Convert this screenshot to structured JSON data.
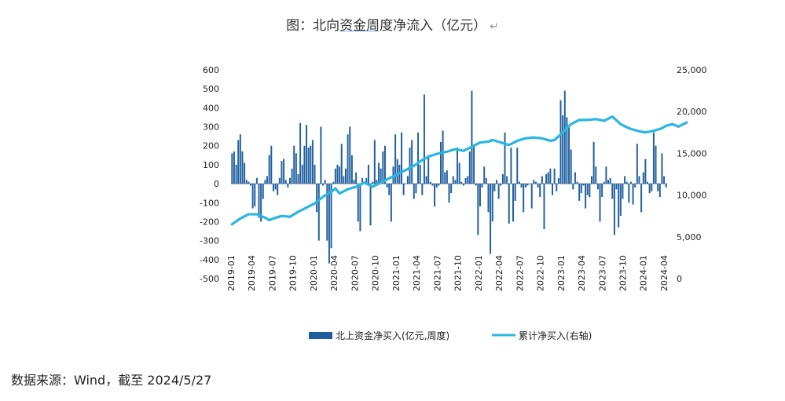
{
  "figure": {
    "title_prefix": "图：北向",
    "title_underlined": "资金周",
    "title_suffix": "度净流入（亿元）",
    "title_mark": "↵"
  },
  "source_note": "数据来源：Wind，截至 2024/5/27",
  "chart_data": {
    "type": "bar+line",
    "left_axis": {
      "ylim": [
        -500,
        600
      ],
      "ticks": [
        600,
        500,
        400,
        300,
        200,
        100,
        0,
        -100,
        -200,
        -300,
        -400,
        -500
      ],
      "tick_labels": [
        "600",
        "500",
        "400",
        "300",
        "200",
        "100",
        "0",
        "-100",
        "-200",
        "-300",
        "-400",
        "-500"
      ]
    },
    "right_axis": {
      "ylim": [
        0,
        25000
      ],
      "ticks": [
        25000,
        20000,
        15000,
        10000,
        5000,
        0
      ],
      "tick_labels": [
        "25,000",
        "20,000",
        "15,000",
        "10,000",
        "5,000",
        "0"
      ]
    },
    "x_ticks": [
      "2019-01",
      "2019-04",
      "2019-07",
      "2019-10",
      "2020-01",
      "2020-04",
      "2020-07",
      "2020-10",
      "2021-01",
      "2021-04",
      "2021-07",
      "2021-10",
      "2022-01",
      "2022-04",
      "2022-07",
      "2022-10",
      "2023-01",
      "2023-04",
      "2023-07",
      "2023-10",
      "2024-01",
      "2024-04"
    ],
    "legend": {
      "bar": "北上资金净买入(亿元,周度)",
      "line": "累计净买入(右轴)",
      "placement": "bottom"
    },
    "colors": {
      "bar": "#1f5fa0",
      "line": "#29b6e0",
      "axis": "#888888"
    },
    "bar_series": {
      "name": "北上资金净买入(亿元,周度)",
      "values": [
        160,
        170,
        100,
        230,
        260,
        170,
        110,
        20,
        10,
        -10,
        -130,
        -120,
        30,
        -180,
        -200,
        -80,
        20,
        40,
        150,
        200,
        -40,
        -30,
        -60,
        30,
        120,
        130,
        20,
        -20,
        30,
        80,
        200,
        160,
        50,
        320,
        100,
        200,
        310,
        190,
        200,
        230,
        100,
        -150,
        -300,
        300,
        -10,
        20,
        -300,
        -420,
        -340,
        10,
        80,
        100,
        90,
        210,
        40,
        80,
        260,
        300,
        150,
        20,
        60,
        -200,
        -250,
        30,
        10,
        30,
        100,
        -220,
        10,
        230,
        20,
        110,
        80,
        170,
        200,
        -20,
        -60,
        -200,
        90,
        260,
        130,
        100,
        270,
        -60,
        0,
        40,
        190,
        230,
        -80,
        -50,
        270,
        100,
        -60,
        470,
        40,
        150,
        10,
        -10,
        -120,
        -20,
        -10,
        220,
        280,
        60,
        70,
        -100,
        -50,
        40,
        20,
        190,
        110,
        10,
        -10,
        30,
        40,
        170,
        490,
        200,
        -10,
        -270,
        -120,
        -20,
        90,
        30,
        -150,
        -370,
        -200,
        -40,
        20,
        -80,
        -10,
        50,
        270,
        40,
        -210,
        190,
        -200,
        -90,
        190,
        10,
        -20,
        -150,
        -20,
        -10,
        0,
        -130,
        20,
        10,
        -20,
        -70,
        40,
        -240,
        50,
        60,
        80,
        -60,
        80,
        -40,
        30,
        440,
        360,
        490,
        350,
        300,
        180,
        -30,
        60,
        10,
        -90,
        -50,
        -10,
        -130,
        -60,
        -70,
        40,
        220,
        90,
        -30,
        -200,
        -70,
        10,
        90,
        20,
        30,
        -80,
        -270,
        -30,
        -230,
        -170,
        -80,
        40,
        10,
        -100,
        10,
        -110,
        -20,
        210,
        40,
        -150,
        60,
        130,
        10,
        -50,
        -40,
        270,
        200,
        -40,
        -70,
        160,
        40,
        -20
      ]
    },
    "line_series": {
      "name": "累计净买入(右轴)",
      "points": [
        [
          0,
          6500
        ],
        [
          4,
          7200
        ],
        [
          8,
          7700
        ],
        [
          12,
          7700
        ],
        [
          16,
          7300
        ],
        [
          18,
          7000
        ],
        [
          20,
          7200
        ],
        [
          24,
          7500
        ],
        [
          28,
          7400
        ],
        [
          32,
          8000
        ],
        [
          36,
          8500
        ],
        [
          40,
          9000
        ],
        [
          44,
          9800
        ],
        [
          48,
          10400
        ],
        [
          50,
          10800
        ],
        [
          52,
          10200
        ],
        [
          56,
          10700
        ],
        [
          60,
          11000
        ],
        [
          64,
          11500
        ],
        [
          68,
          11000
        ],
        [
          72,
          11500
        ],
        [
          76,
          12000
        ],
        [
          80,
          12500
        ],
        [
          84,
          13000
        ],
        [
          88,
          13500
        ],
        [
          92,
          14200
        ],
        [
          96,
          14700
        ],
        [
          100,
          15000
        ],
        [
          104,
          15200
        ],
        [
          108,
          15500
        ],
        [
          112,
          15300
        ],
        [
          116,
          15800
        ],
        [
          120,
          16300
        ],
        [
          124,
          16400
        ],
        [
          126,
          16600
        ],
        [
          130,
          16300
        ],
        [
          134,
          16000
        ],
        [
          138,
          16500
        ],
        [
          142,
          16800
        ],
        [
          146,
          16900
        ],
        [
          150,
          16800
        ],
        [
          154,
          16500
        ],
        [
          156,
          16600
        ],
        [
          160,
          17500
        ],
        [
          164,
          18500
        ],
        [
          168,
          19000
        ],
        [
          172,
          19000
        ],
        [
          176,
          19100
        ],
        [
          180,
          18900
        ],
        [
          184,
          19400
        ],
        [
          188,
          18500
        ],
        [
          192,
          18000
        ],
        [
          196,
          17700
        ],
        [
          200,
          17500
        ],
        [
          204,
          17700
        ],
        [
          208,
          18000
        ],
        [
          210,
          18300
        ],
        [
          213,
          18500
        ],
        [
          216,
          18200
        ],
        [
          220,
          18700
        ]
      ]
    }
  }
}
